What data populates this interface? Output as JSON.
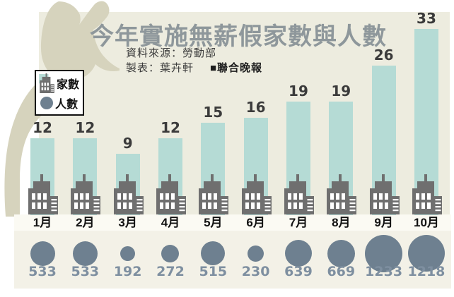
{
  "title": "今年實施無薪假家數與人數",
  "source": {
    "line1": "資料來源：勞動部",
    "line2": "製表：葉卉軒",
    "brand": "■聯合晚報"
  },
  "legend": {
    "companies_label": "家數",
    "people_label": "人數"
  },
  "chart_data": {
    "type": "bar",
    "title": "今年實施無薪假家數與人數",
    "categories": [
      "1月",
      "2月",
      "3月",
      "4月",
      "5月",
      "6月",
      "7月",
      "8月",
      "9月",
      "10月"
    ],
    "series": [
      {
        "name": "家數",
        "style": "bar-with-building-icon",
        "values": [
          12,
          12,
          9,
          12,
          15,
          16,
          19,
          19,
          26,
          33
        ]
      },
      {
        "name": "人數",
        "style": "proportional-circle",
        "values": [
          533,
          533,
          192,
          272,
          515,
          230,
          639,
          669,
          1233,
          1218
        ]
      }
    ],
    "legend_position": "top-left",
    "grid": false,
    "value_labels": "above-bars-and-below-circles"
  },
  "colors": {
    "bar": "#b5dbd5",
    "building": "#6f6f6f",
    "building_window": "#ffffff",
    "circle": "#6e8090",
    "circle_value_text": "#7e8fa0",
    "bar_value_text": "#3b3b3b",
    "title_text": "#8e979b",
    "source_text": "#3c3c3c",
    "background_main": "#edecdf",
    "background_people_strip": "#f3f1e7",
    "month_strip": "#fbfaf3",
    "silhouette": "#d6d3bd"
  }
}
